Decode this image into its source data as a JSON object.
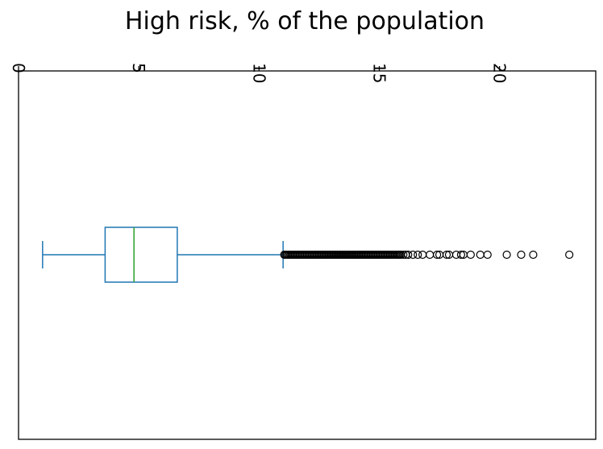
{
  "chart_data": {
    "type": "boxplot",
    "title": "High risk, % of the population",
    "orientation": "horizontal",
    "value_axis_position": "top",
    "value_axis_label_rotation": 90,
    "xlim": [
      0,
      24
    ],
    "ticks": [
      0,
      5,
      10,
      15,
      20
    ],
    "tick_labels": [
      "0",
      "5",
      "10",
      "15",
      "20"
    ],
    "grid": false,
    "box": {
      "whisker_low": 1.0,
      "q1": 3.6,
      "median": 4.8,
      "q3": 6.6,
      "whisker_high": 11.0
    },
    "outliers": [
      11.05,
      11.1,
      11.15,
      11.2,
      11.25,
      11.3,
      11.35,
      11.4,
      11.45,
      11.5,
      11.55,
      11.6,
      11.65,
      11.7,
      11.75,
      11.8,
      11.85,
      11.9,
      11.95,
      12.0,
      12.05,
      12.1,
      12.15,
      12.2,
      12.25,
      12.3,
      12.35,
      12.4,
      12.45,
      12.5,
      12.55,
      12.6,
      12.65,
      12.7,
      12.75,
      12.8,
      12.85,
      12.9,
      12.95,
      13.0,
      13.05,
      13.1,
      13.15,
      13.2,
      13.25,
      13.3,
      13.35,
      13.4,
      13.45,
      13.5,
      13.55,
      13.6,
      13.65,
      13.7,
      13.75,
      13.8,
      13.85,
      13.9,
      13.95,
      14.0,
      14.05,
      14.1,
      14.15,
      14.2,
      14.25,
      14.3,
      14.35,
      14.4,
      14.45,
      14.5,
      14.55,
      14.6,
      14.65,
      14.7,
      14.75,
      14.8,
      14.85,
      14.9,
      14.95,
      15.0,
      15.05,
      15.1,
      15.15,
      15.2,
      15.25,
      15.3,
      15.35,
      15.4,
      15.45,
      15.5,
      15.55,
      15.6,
      15.65,
      15.7,
      15.75,
      15.8,
      15.85,
      15.9,
      16.0,
      16.1,
      16.2,
      16.4,
      16.6,
      16.8,
      17.1,
      17.4,
      17.5,
      17.8,
      17.9,
      18.2,
      18.4,
      18.5,
      18.8,
      19.2,
      19.5,
      20.3,
      20.9,
      21.4,
      22.9
    ],
    "colors": {
      "box": "#1f77b4",
      "median": "#2ca02c",
      "outlier_edge": "#000000",
      "axes": "#000000"
    }
  }
}
